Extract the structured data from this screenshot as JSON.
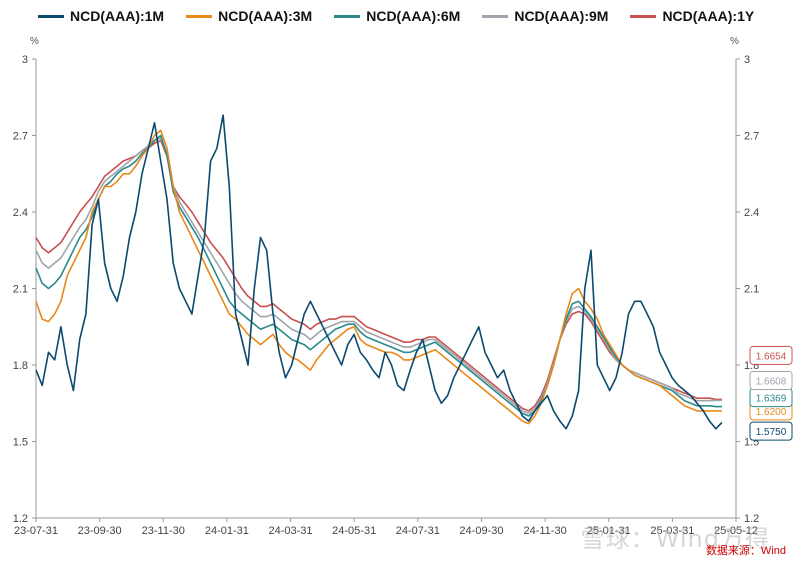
{
  "chart_data": {
    "type": "line",
    "unit_left": "%",
    "unit_right": "%",
    "y_ticks": [
      "3",
      "2.7",
      "2.4",
      "2.1",
      "1.8",
      "1.5",
      "1.2"
    ],
    "ylim": [
      1.2,
      3.0
    ],
    "x_ticks": [
      "23-07-31",
      "23-09-30",
      "23-11-30",
      "24-01-31",
      "24-03-31",
      "24-05-31",
      "24-07-31",
      "24-09-30",
      "24-11-30",
      "25-01-31",
      "25-03-31",
      "25-05-12"
    ],
    "source": "数据来源：Wind",
    "watermark": "雪球：Wind万得",
    "series": [
      {
        "name": "NCD(AAA):1M",
        "color": "#0b4a6e",
        "end_label": "1.5750",
        "values": [
          1.78,
          1.72,
          1.85,
          1.82,
          1.95,
          1.8,
          1.7,
          1.9,
          2.0,
          2.35,
          2.45,
          2.2,
          2.1,
          2.05,
          2.15,
          2.3,
          2.4,
          2.55,
          2.65,
          2.75,
          2.6,
          2.45,
          2.2,
          2.1,
          2.05,
          2.0,
          2.15,
          2.3,
          2.6,
          2.65,
          2.78,
          2.5,
          2.0,
          1.9,
          1.8,
          2.1,
          2.3,
          2.25,
          2.0,
          1.85,
          1.75,
          1.8,
          1.9,
          2.0,
          2.05,
          2.0,
          1.95,
          1.9,
          1.85,
          1.8,
          1.88,
          1.92,
          1.85,
          1.82,
          1.78,
          1.75,
          1.85,
          1.8,
          1.72,
          1.7,
          1.78,
          1.85,
          1.9,
          1.8,
          1.7,
          1.65,
          1.68,
          1.75,
          1.8,
          1.85,
          1.9,
          1.95,
          1.85,
          1.8,
          1.75,
          1.78,
          1.7,
          1.65,
          1.6,
          1.58,
          1.62,
          1.65,
          1.68,
          1.62,
          1.58,
          1.55,
          1.6,
          1.7,
          2.1,
          2.25,
          1.8,
          1.75,
          1.7,
          1.75,
          1.85,
          2.0,
          2.05,
          2.05,
          2.0,
          1.95,
          1.85,
          1.8,
          1.75,
          1.72,
          1.7,
          1.68,
          1.65,
          1.62,
          1.58,
          1.55,
          1.575
        ]
      },
      {
        "name": "NCD(AAA):3M",
        "color": "#e8891a",
        "end_label": "1.6200",
        "values": [
          2.05,
          1.98,
          1.97,
          2.0,
          2.05,
          2.15,
          2.2,
          2.25,
          2.3,
          2.4,
          2.45,
          2.5,
          2.5,
          2.52,
          2.55,
          2.55,
          2.58,
          2.62,
          2.65,
          2.7,
          2.72,
          2.65,
          2.5,
          2.4,
          2.35,
          2.3,
          2.25,
          2.2,
          2.15,
          2.1,
          2.05,
          2.0,
          1.98,
          1.95,
          1.92,
          1.9,
          1.88,
          1.9,
          1.92,
          1.88,
          1.85,
          1.83,
          1.82,
          1.8,
          1.78,
          1.82,
          1.85,
          1.88,
          1.9,
          1.92,
          1.94,
          1.95,
          1.9,
          1.88,
          1.87,
          1.86,
          1.85,
          1.85,
          1.84,
          1.82,
          1.82,
          1.83,
          1.84,
          1.85,
          1.86,
          1.84,
          1.82,
          1.8,
          1.78,
          1.76,
          1.74,
          1.72,
          1.7,
          1.68,
          1.66,
          1.64,
          1.62,
          1.6,
          1.58,
          1.57,
          1.6,
          1.65,
          1.72,
          1.8,
          1.9,
          2.0,
          2.08,
          2.1,
          2.05,
          2.02,
          1.98,
          1.92,
          1.88,
          1.84,
          1.8,
          1.78,
          1.76,
          1.75,
          1.74,
          1.73,
          1.72,
          1.7,
          1.68,
          1.66,
          1.64,
          1.63,
          1.62,
          1.62,
          1.62,
          1.62,
          1.62
        ]
      },
      {
        "name": "NCD(AAA):6M",
        "color": "#2a8a8a",
        "end_label": "1.6369",
        "values": [
          2.18,
          2.12,
          2.1,
          2.12,
          2.15,
          2.2,
          2.25,
          2.3,
          2.33,
          2.38,
          2.45,
          2.5,
          2.52,
          2.55,
          2.57,
          2.58,
          2.6,
          2.63,
          2.65,
          2.68,
          2.7,
          2.62,
          2.48,
          2.42,
          2.38,
          2.34,
          2.3,
          2.25,
          2.2,
          2.15,
          2.1,
          2.05,
          2.02,
          2.0,
          1.98,
          1.96,
          1.94,
          1.95,
          1.96,
          1.94,
          1.92,
          1.9,
          1.89,
          1.88,
          1.86,
          1.88,
          1.9,
          1.92,
          1.94,
          1.95,
          1.96,
          1.96,
          1.93,
          1.91,
          1.9,
          1.89,
          1.88,
          1.87,
          1.86,
          1.85,
          1.85,
          1.86,
          1.87,
          1.88,
          1.89,
          1.87,
          1.85,
          1.83,
          1.81,
          1.79,
          1.77,
          1.75,
          1.73,
          1.71,
          1.69,
          1.67,
          1.65,
          1.63,
          1.61,
          1.6,
          1.62,
          1.66,
          1.72,
          1.8,
          1.9,
          1.98,
          2.04,
          2.05,
          2.02,
          1.99,
          1.95,
          1.91,
          1.87,
          1.83,
          1.8,
          1.78,
          1.76,
          1.75,
          1.74,
          1.73,
          1.72,
          1.71,
          1.7,
          1.68,
          1.66,
          1.65,
          1.64,
          1.64,
          1.64,
          1.637,
          1.637
        ]
      },
      {
        "name": "NCD(AAA):9M",
        "color": "#a0a4ac",
        "end_label": "1.6608",
        "values": [
          2.25,
          2.2,
          2.18,
          2.2,
          2.22,
          2.26,
          2.3,
          2.34,
          2.37,
          2.42,
          2.48,
          2.52,
          2.54,
          2.56,
          2.58,
          2.6,
          2.62,
          2.64,
          2.66,
          2.68,
          2.69,
          2.63,
          2.5,
          2.44,
          2.4,
          2.36,
          2.32,
          2.28,
          2.24,
          2.2,
          2.16,
          2.12,
          2.08,
          2.05,
          2.03,
          2.01,
          1.99,
          1.99,
          2.0,
          1.98,
          1.96,
          1.94,
          1.93,
          1.92,
          1.9,
          1.92,
          1.94,
          1.95,
          1.96,
          1.97,
          1.97,
          1.97,
          1.95,
          1.93,
          1.92,
          1.91,
          1.9,
          1.89,
          1.88,
          1.87,
          1.87,
          1.88,
          1.89,
          1.9,
          1.9,
          1.88,
          1.86,
          1.84,
          1.82,
          1.8,
          1.78,
          1.76,
          1.74,
          1.72,
          1.7,
          1.68,
          1.66,
          1.64,
          1.62,
          1.61,
          1.63,
          1.67,
          1.73,
          1.81,
          1.9,
          1.97,
          2.02,
          2.03,
          2.01,
          1.98,
          1.94,
          1.9,
          1.86,
          1.82,
          1.8,
          1.78,
          1.77,
          1.76,
          1.75,
          1.74,
          1.73,
          1.72,
          1.71,
          1.69,
          1.68,
          1.67,
          1.66,
          1.66,
          1.66,
          1.661,
          1.661
        ]
      },
      {
        "name": "NCD(AAA):1Y",
        "color": "#c8504e",
        "end_label": "1.6654",
        "values": [
          2.3,
          2.26,
          2.24,
          2.26,
          2.28,
          2.32,
          2.36,
          2.4,
          2.43,
          2.46,
          2.5,
          2.54,
          2.56,
          2.58,
          2.6,
          2.61,
          2.62,
          2.64,
          2.65,
          2.67,
          2.68,
          2.62,
          2.5,
          2.46,
          2.43,
          2.4,
          2.36,
          2.32,
          2.28,
          2.25,
          2.22,
          2.18,
          2.14,
          2.1,
          2.07,
          2.05,
          2.03,
          2.03,
          2.04,
          2.02,
          2.0,
          1.98,
          1.97,
          1.96,
          1.94,
          1.96,
          1.97,
          1.98,
          1.98,
          1.99,
          1.99,
          1.99,
          1.97,
          1.95,
          1.94,
          1.93,
          1.92,
          1.91,
          1.9,
          1.89,
          1.89,
          1.9,
          1.9,
          1.91,
          1.91,
          1.89,
          1.87,
          1.85,
          1.83,
          1.81,
          1.79,
          1.77,
          1.75,
          1.73,
          1.71,
          1.69,
          1.67,
          1.65,
          1.63,
          1.62,
          1.64,
          1.68,
          1.74,
          1.82,
          1.9,
          1.96,
          2.0,
          2.01,
          2.0,
          1.97,
          1.93,
          1.89,
          1.85,
          1.82,
          1.8,
          1.78,
          1.77,
          1.76,
          1.75,
          1.74,
          1.73,
          1.72,
          1.71,
          1.7,
          1.69,
          1.68,
          1.67,
          1.67,
          1.67,
          1.665,
          1.665
        ]
      }
    ]
  }
}
